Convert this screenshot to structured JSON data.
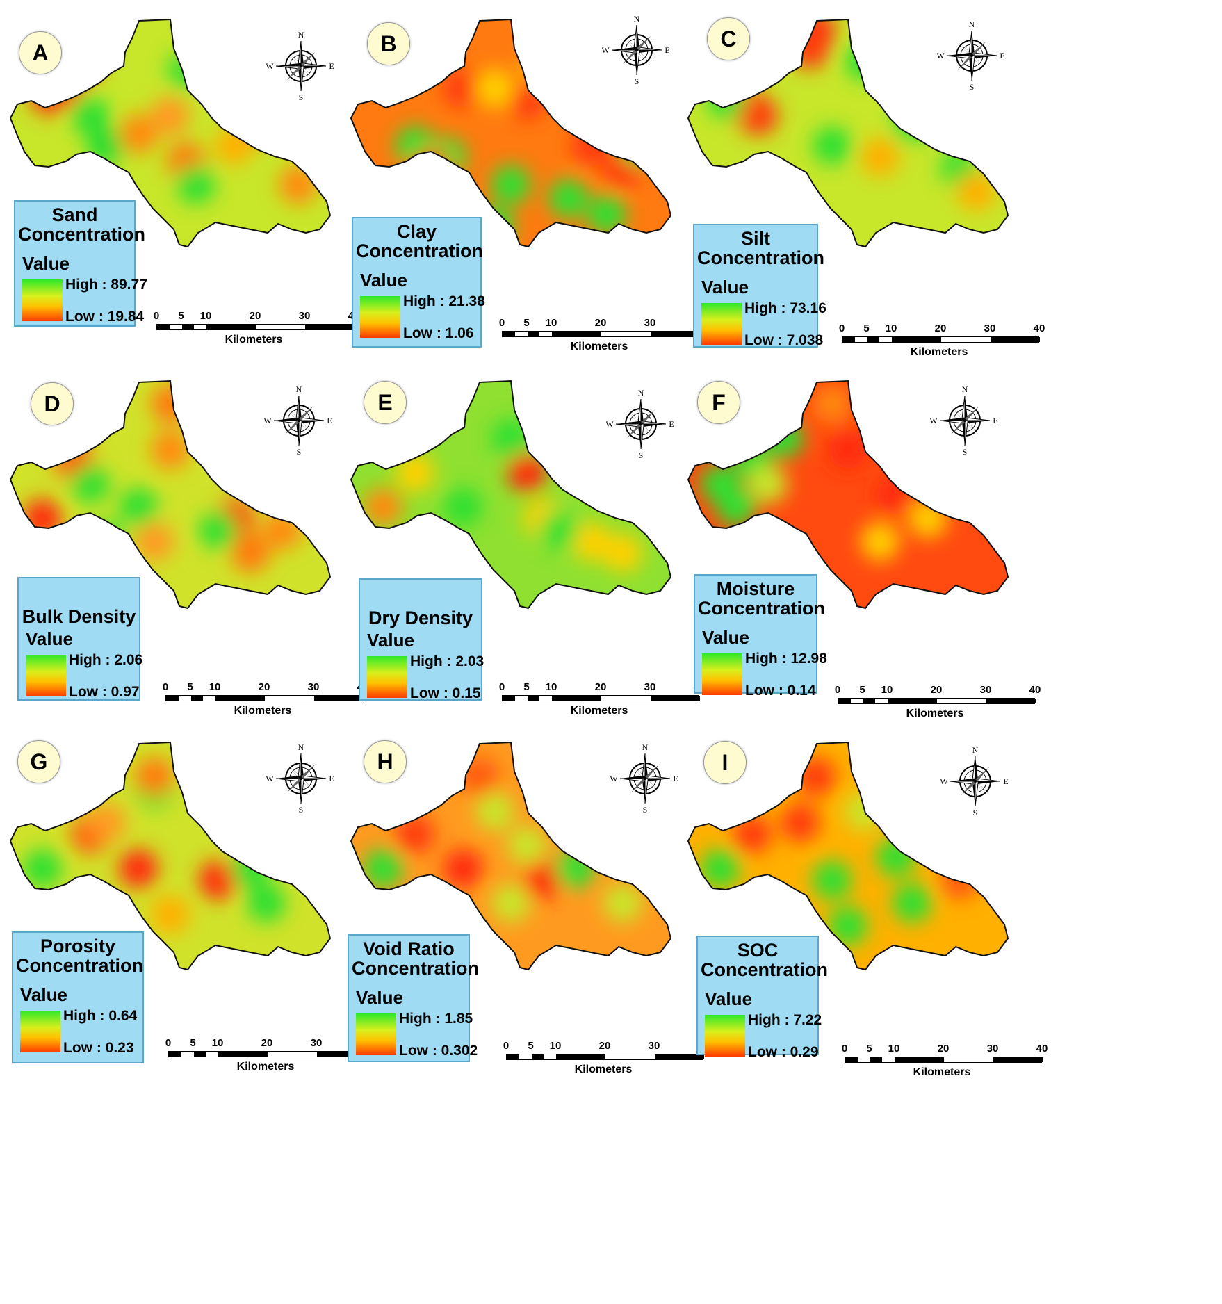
{
  "panels": [
    {
      "letter": "A",
      "title_line1": "Sand",
      "title_line2": "Concentration",
      "value_label": "Value",
      "high": "High : 89.77",
      "low": "Low : 19.84",
      "base": "#c8e62a",
      "spots": [
        [
          "#ff2a10",
          0.22,
          0.2
        ],
        [
          "#ff3a10",
          0.12,
          0.33
        ],
        [
          "#ff3a10",
          0.16,
          0.3
        ],
        [
          "#23dd30",
          0.3,
          0.55
        ],
        [
          "#3fe030",
          0.55,
          0.22
        ],
        [
          "#ff6a10",
          0.62,
          0.1
        ],
        [
          "#ff8a10",
          0.4,
          0.5
        ],
        [
          "#ffb000",
          0.7,
          0.55
        ],
        [
          "#ff7a10",
          0.55,
          0.62
        ],
        [
          "#ff6a10",
          0.8,
          0.45
        ],
        [
          "#ff8a10",
          0.9,
          0.72
        ],
        [
          "#2ee030",
          0.58,
          0.72
        ],
        [
          "#ff9a20",
          0.5,
          0.42
        ],
        [
          "#2ee030",
          0.25,
          0.42
        ]
      ]
    },
    {
      "letter": "B",
      "title_line1": "Clay",
      "title_line2": "Concentration",
      "value_label": "Value",
      "high": "High : 21.38",
      "low": "Low : 1.06",
      "base": "#ff7a10",
      "spots": [
        [
          "#ff3a10",
          0.35,
          0.3
        ],
        [
          "#ff3a10",
          0.55,
          0.35
        ],
        [
          "#ff3a10",
          0.75,
          0.55
        ],
        [
          "#ff3a10",
          0.85,
          0.65
        ],
        [
          "#2ee030",
          0.2,
          0.55
        ],
        [
          "#2ee030",
          0.3,
          0.6
        ],
        [
          "#2ee030",
          0.5,
          0.72
        ],
        [
          "#2ee030",
          0.68,
          0.78
        ],
        [
          "#2ee030",
          0.8,
          0.85
        ],
        [
          "#2ee030",
          0.45,
          0.9
        ],
        [
          "#ffd000",
          0.45,
          0.3
        ],
        [
          "#ffd000",
          0.6,
          0.2
        ],
        [
          "#ff2a10",
          0.25,
          0.65
        ],
        [
          "#2ee030",
          0.9,
          0.55
        ]
      ]
    },
    {
      "letter": "C",
      "title_line1": "Silt",
      "title_line2": "Concentration",
      "value_label": "Value",
      "high": "High : 73.16",
      "low": "Low : 7.038",
      "base": "#c8e62a",
      "spots": [
        [
          "#ff2a10",
          0.4,
          0.05
        ],
        [
          "#ff3a10",
          0.38,
          0.13
        ],
        [
          "#ff3a10",
          0.22,
          0.42
        ],
        [
          "#ff3a10",
          0.18,
          0.38
        ],
        [
          "#2ee030",
          0.12,
          0.35
        ],
        [
          "#2ee030",
          0.55,
          0.18
        ],
        [
          "#2ee030",
          0.7,
          0.45
        ],
        [
          "#ffb000",
          0.6,
          0.6
        ],
        [
          "#2ee030",
          0.85,
          0.65
        ],
        [
          "#ffb000",
          0.9,
          0.75
        ],
        [
          "#2ee030",
          0.45,
          0.55
        ]
      ]
    },
    {
      "letter": "D",
      "title_line1": "Bulk Density",
      "title_line2": "",
      "value_label": "Value",
      "high": "High : 2.06",
      "low": "Low : 0.97",
      "base": "#d0e22a",
      "spots": [
        [
          "#ff2a10",
          0.1,
          0.6
        ],
        [
          "#ff5a10",
          0.2,
          0.35
        ],
        [
          "#ff3a10",
          0.7,
          0.6
        ],
        [
          "#ff7a10",
          0.5,
          0.1
        ],
        [
          "#ff7a10",
          0.75,
          0.75
        ],
        [
          "#2ee030",
          0.4,
          0.55
        ],
        [
          "#2ee030",
          0.65,
          0.65
        ],
        [
          "#2ee030",
          0.25,
          0.45
        ],
        [
          "#ff9a20",
          0.45,
          0.7
        ],
        [
          "#ff8a10",
          0.85,
          0.65
        ],
        [
          "#ff8a10",
          0.5,
          0.3
        ],
        [
          "#2ee030",
          0.3,
          0.7
        ]
      ]
    },
    {
      "letter": "E",
      "title_line1": "Dry Density",
      "title_line2": "",
      "value_label": "Value",
      "high": "High : 2.03",
      "low": "Low : 0.15",
      "base": "#8fe030",
      "spots": [
        [
          "#ff2a10",
          0.55,
          0.4
        ],
        [
          "#ff8a10",
          0.1,
          0.55
        ],
        [
          "#ffd000",
          0.6,
          0.6
        ],
        [
          "#ffd000",
          0.75,
          0.7
        ],
        [
          "#2ee030",
          0.35,
          0.55
        ],
        [
          "#2ee030",
          0.65,
          0.65
        ],
        [
          "#ffd000",
          0.2,
          0.4
        ],
        [
          "#ffd000",
          0.85,
          0.75
        ],
        [
          "#2ee030",
          0.5,
          0.25
        ]
      ]
    },
    {
      "letter": "F",
      "title_line1": "Moisture",
      "title_line2": "Concentration",
      "value_label": "Value",
      "high": "High : 12.98",
      "low": "Low : 0.14",
      "base": "#ff4a10",
      "spots": [
        [
          "#2ee030",
          0.1,
          0.45
        ],
        [
          "#2ee030",
          0.2,
          0.35
        ],
        [
          "#2ee030",
          0.15,
          0.55
        ],
        [
          "#c8e62a",
          0.25,
          0.45
        ],
        [
          "#ff2a10",
          0.5,
          0.3
        ],
        [
          "#ff2a10",
          0.65,
          0.5
        ],
        [
          "#ffd000",
          0.6,
          0.7
        ],
        [
          "#ffd000",
          0.75,
          0.6
        ],
        [
          "#ff8a10",
          0.45,
          0.1
        ],
        [
          "#2ee030",
          0.3,
          0.25
        ]
      ]
    },
    {
      "letter": "G",
      "title_line1": "Porosity",
      "title_line2": "Concentration",
      "value_label": "Value",
      "high": "High : 0.64",
      "low": "Low : 0.23",
      "base": "#d0e22a",
      "spots": [
        [
          "#ff2a10",
          0.4,
          0.55
        ],
        [
          "#ff2a10",
          0.65,
          0.6
        ],
        [
          "#ff5a10",
          0.25,
          0.4
        ],
        [
          "#2ee030",
          0.1,
          0.55
        ],
        [
          "#2ee030",
          0.75,
          0.55
        ],
        [
          "#2ee030",
          0.45,
          0.2
        ],
        [
          "#ff7a10",
          0.45,
          0.15
        ],
        [
          "#ff9a20",
          0.3,
          0.35
        ],
        [
          "#2ee030",
          0.8,
          0.7
        ],
        [
          "#ffb000",
          0.5,
          0.75
        ]
      ]
    },
    {
      "letter": "H",
      "title_line1": "Void Ratio",
      "title_line2": "Concentration",
      "value_label": "Value",
      "high": "High : 1.85",
      "low": "Low : 0.302",
      "base": "#ff9a20",
      "spots": [
        [
          "#ff2a10",
          0.35,
          0.55
        ],
        [
          "#ff2a10",
          0.6,
          0.6
        ],
        [
          "#ff3a10",
          0.2,
          0.4
        ],
        [
          "#2ee030",
          0.1,
          0.55
        ],
        [
          "#2ee030",
          0.7,
          0.55
        ],
        [
          "#c8e62a",
          0.45,
          0.3
        ],
        [
          "#c8e62a",
          0.55,
          0.45
        ],
        [
          "#c8e62a",
          0.5,
          0.7
        ],
        [
          "#ff5a10",
          0.4,
          0.15
        ],
        [
          "#c8e62a",
          0.85,
          0.7
        ]
      ]
    },
    {
      "letter": "I",
      "title_line1": "SOC",
      "title_line2": "Concentration",
      "value_label": "Value",
      "high": "High : 7.22",
      "low": "Low : 0.29",
      "base": "#ffb000",
      "spots": [
        [
          "#ff3a10",
          0.4,
          0.15
        ],
        [
          "#ff3a10",
          0.2,
          0.4
        ],
        [
          "#ff3a10",
          0.35,
          0.35
        ],
        [
          "#2ee030",
          0.45,
          0.6
        ],
        [
          "#2ee030",
          0.65,
          0.5
        ],
        [
          "#2ee030",
          0.7,
          0.7
        ],
        [
          "#2ee030",
          0.5,
          0.8
        ],
        [
          "#2ee030",
          0.1,
          0.55
        ],
        [
          "#ff5a10",
          0.85,
          0.6
        ],
        [
          "#c8e62a",
          0.55,
          0.3
        ]
      ]
    }
  ],
  "scalebar": {
    "ticks": [
      "0",
      "5",
      "10",
      "20",
      "30",
      "40"
    ],
    "units": "Kilometers"
  },
  "compass": {
    "n": "N",
    "s": "S",
    "e": "E",
    "w": "W"
  }
}
